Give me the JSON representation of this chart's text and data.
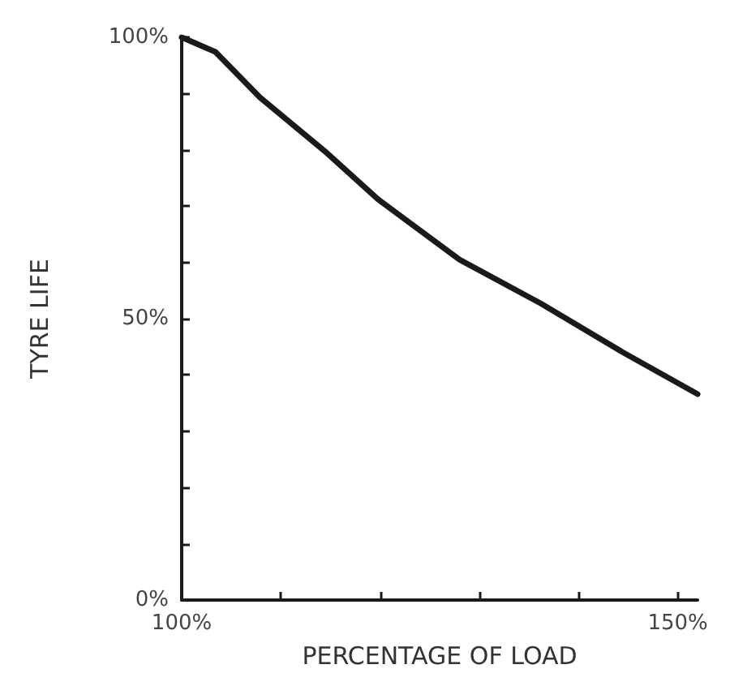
{
  "chart_data": {
    "type": "line",
    "xlabel": "PERCENTAGE OF LOAD",
    "ylabel": "TYRE LIFE",
    "x": [
      100,
      103.4,
      107.9,
      114.4,
      119.8,
      128,
      136.2,
      144.4,
      152
    ],
    "values": [
      100,
      97.4,
      89.3,
      79.8,
      71.2,
      60.5,
      52.7,
      44.1,
      36.6
    ],
    "color": "#1a1a1a",
    "marker": "none",
    "line_style": "solid",
    "grid": false,
    "xlim": [
      100,
      152
    ],
    "xticks": [
      {
        "value": 100,
        "label": "100%"
      },
      {
        "value": 110,
        "label": null
      },
      {
        "value": 120,
        "label": null
      },
      {
        "value": 130,
        "label": null
      },
      {
        "value": 140,
        "label": null
      },
      {
        "value": 150,
        "label": "150%"
      }
    ],
    "ylim": [
      0,
      100
    ],
    "yticks": [
      {
        "value": 0,
        "label": "0%"
      },
      {
        "value": 10,
        "label": null
      },
      {
        "value": 20,
        "label": null
      },
      {
        "value": 30,
        "label": null
      },
      {
        "value": 40,
        "label": null
      },
      {
        "value": 50,
        "label": "50%"
      },
      {
        "value": 60,
        "label": null
      },
      {
        "value": 70,
        "label": null
      },
      {
        "value": 80,
        "label": null
      },
      {
        "value": 90,
        "label": null
      },
      {
        "value": 100,
        "label": "100%"
      }
    ]
  }
}
